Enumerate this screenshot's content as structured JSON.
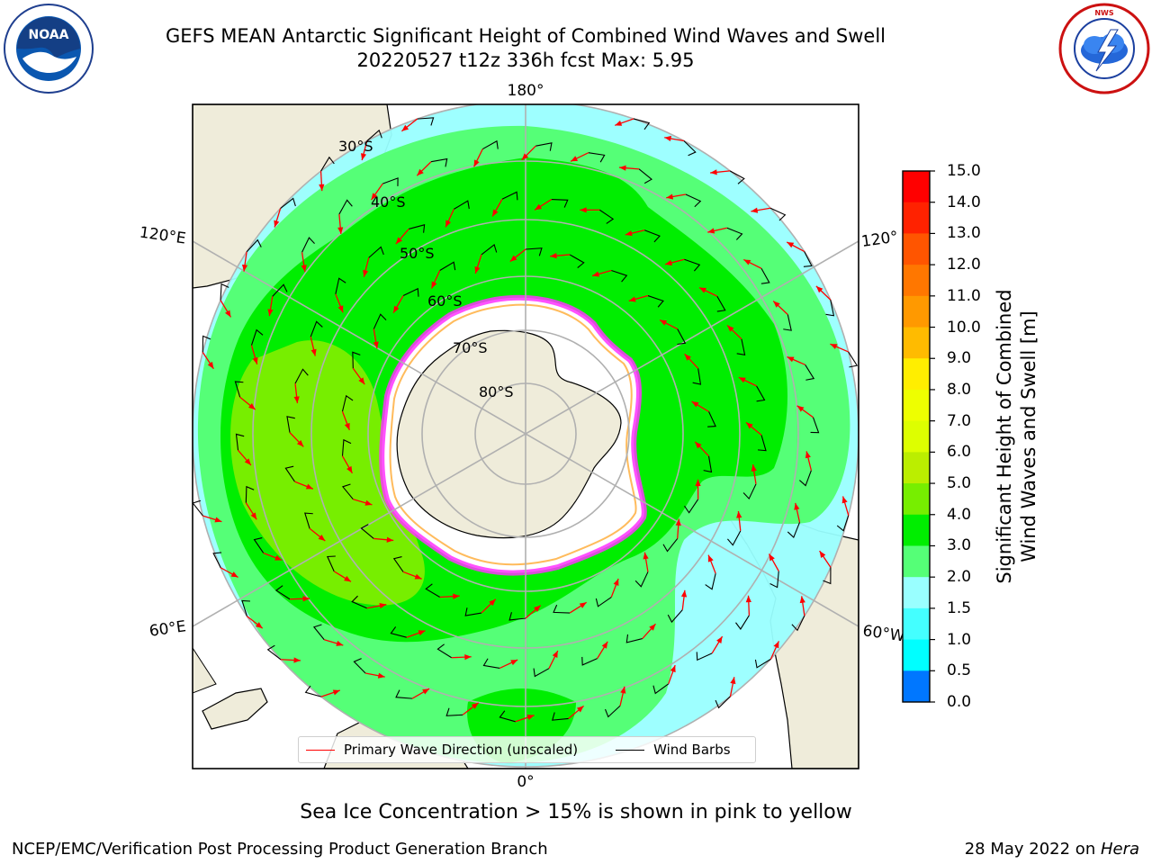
{
  "header": {
    "title_line1": "GEFS MEAN Antarctic Significant Height of Combined Wind Waves and Swell",
    "title_line2": "20220527 t12z 336h fcst   Max: 5.95"
  },
  "logos": {
    "left": {
      "text": "NOAA",
      "ring_text": "NATIONAL OCEANIC AND ATMOSPHERIC ADMINISTRATION · U.S. DEPARTMENT OF COMMERCE"
    },
    "right": {
      "ring_text": "NATIONAL WEATHER SERVICE"
    }
  },
  "map": {
    "projection": "south-polar-stereographic",
    "lon_labels": {
      "top": "180°",
      "bottom": "0°",
      "left_upper": "120°E",
      "left_lower": "60°E",
      "right_upper": "120°",
      "right_lower": "60°W"
    },
    "lat_labels": [
      "30°S",
      "40°S",
      "50°S",
      "60°S",
      "70°S",
      "80°S"
    ],
    "colors": {
      "land": "#efecda",
      "ocean_outside": "#ffffff",
      "grid": "#b0b0b0",
      "arrow": "#ff0000",
      "barb": "#000000",
      "sea_ice_edge": "#ff33ff",
      "sea_ice_inner": "#ffaa33"
    },
    "max_wave_height_m": 5.95
  },
  "legend": {
    "primary_wave_direction": "Primary Wave Direction (unscaled)",
    "wind_barbs": "Wind Barbs"
  },
  "colorbar": {
    "title_line1": "Significant Height of Combined",
    "title_line2": "Wind Waves and Swell [m]",
    "ticks": [
      "15.0",
      "14.0",
      "13.0",
      "12.0",
      "11.0",
      "10.0",
      "9.0",
      "8.0",
      "7.0",
      "6.0",
      "5.0",
      "4.0",
      "3.0",
      "2.0",
      "1.5",
      "1.0",
      "0.5",
      "0.0"
    ],
    "colors": [
      "#ff0000",
      "#ff2200",
      "#ff5500",
      "#ff7700",
      "#ff9900",
      "#ffbb00",
      "#ffee00",
      "#eeff00",
      "#ddff00",
      "#bbee00",
      "#77ee00",
      "#00ee00",
      "#55ff77",
      "#99ffff",
      "#44ffff",
      "#00ffff",
      "#0077ff",
      "#0000ff"
    ]
  },
  "notes": {
    "sea_ice": "Sea Ice Concentration > 15% is shown in pink to yellow"
  },
  "footer": {
    "left": "NCEP/EMC/Verification Post Processing Product Generation Branch",
    "right_date": "28 May 2022 on ",
    "right_host": "Hera"
  }
}
